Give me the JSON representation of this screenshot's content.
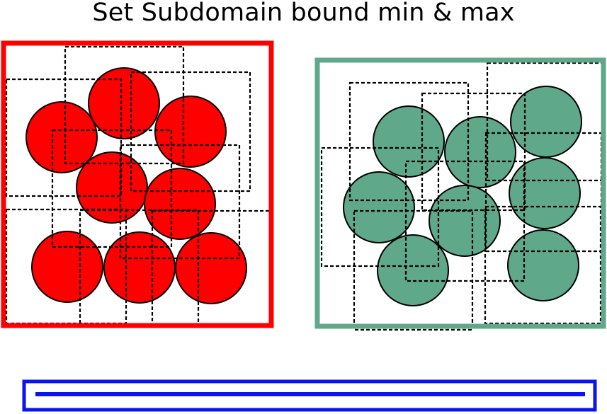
{
  "title": "Set Subdomain bound min & max",
  "colors": {
    "red_domain": "#ff0000",
    "green_domain": "#5fa98a",
    "blue_bar": "#0a14f0",
    "circle_stroke": "#000000",
    "dashed_box": "#000000"
  },
  "panels": [
    {
      "name": "red",
      "color_key": "red_domain",
      "circle_count": 8
    },
    {
      "name": "green",
      "color_key": "green_domain",
      "circle_count": 8
    }
  ]
}
